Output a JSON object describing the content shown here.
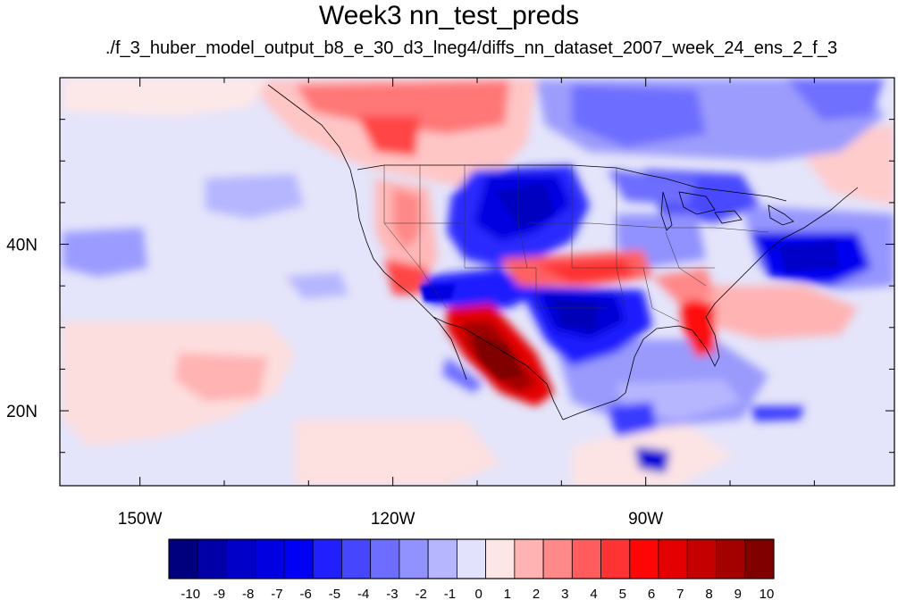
{
  "title": "Week3 nn_test_preds",
  "subtitle": "./f_3_huber_model_output_b8_e_30_d3_lneg4/diffs_nn_dataset_2007_week_24_ens_2_f_3",
  "map": {
    "projection": "cylindrical equidistant",
    "lon_range": [
      -159.5,
      -60.5
    ],
    "lat_range": [
      11,
      60
    ],
    "lon_ticks": [
      {
        "lon": -150,
        "label": "150W"
      },
      {
        "lon": -120,
        "label": "120W"
      },
      {
        "lon": -90,
        "label": "90W"
      }
    ],
    "lat_ticks": [
      {
        "lat": 40,
        "label": "40N"
      },
      {
        "lat": 20,
        "label": "20N"
      }
    ]
  },
  "colorbar": {
    "colors": [
      "#00007f",
      "#0000a6",
      "#0000c8",
      "#0000e0",
      "#0000f5",
      "#1f1fff",
      "#4646ff",
      "#6d6dff",
      "#9191ff",
      "#b6b6ff",
      "#e2e2fc",
      "#fde6e6",
      "#ffb3b3",
      "#ff8888",
      "#ff5d5d",
      "#ff3333",
      "#ff0606",
      "#e50000",
      "#c40000",
      "#a30000",
      "#800000"
    ],
    "labels": [
      "-10",
      "-9",
      "-8",
      "-7",
      "-6",
      "-5",
      "-4",
      "-3",
      "-2",
      "-1",
      "0",
      "1",
      "2",
      "3",
      "4",
      "5",
      "6",
      "7",
      "8",
      "9",
      "10"
    ]
  }
}
